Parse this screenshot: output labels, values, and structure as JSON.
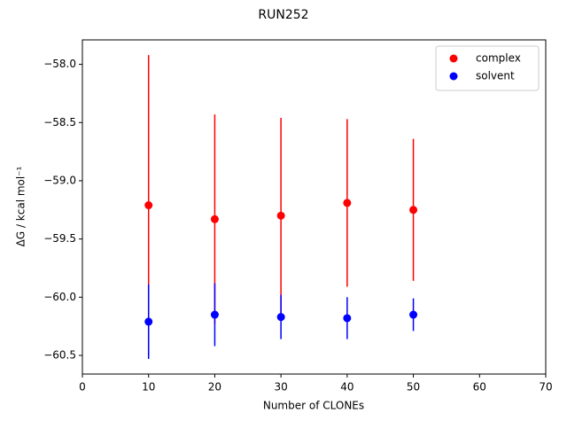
{
  "chart_data": {
    "type": "errorbar",
    "title": "RUN252",
    "x_label": "Number of CLONEs",
    "y_label": "ΔG / kcal mol⁻¹",
    "x": [
      10,
      20,
      30,
      40,
      50
    ],
    "series": [
      {
        "name": "complex",
        "color": "#ff0000",
        "values": [
          -59.21,
          -59.33,
          -59.3,
          -59.19,
          -59.25
        ],
        "errors": [
          1.29,
          0.9,
          0.84,
          0.72,
          0.61
        ]
      },
      {
        "name": "solvent",
        "color": "#0000ff",
        "values": [
          -60.21,
          -60.15,
          -60.17,
          -60.18,
          -60.15
        ],
        "errors": [
          0.32,
          0.27,
          0.19,
          0.18,
          0.14
        ]
      }
    ],
    "xlim": [
      0,
      70
    ],
    "xticks": [
      0,
      10,
      20,
      30,
      40,
      50,
      60,
      70
    ],
    "ylim": [
      -60.66,
      -57.79
    ],
    "yticks": [
      {
        "value": -60.5,
        "label": "−60.5"
      },
      {
        "value": -60.0,
        "label": "−60.0"
      },
      {
        "value": -59.5,
        "label": "−59.5"
      },
      {
        "value": -59.0,
        "label": "−59.0"
      },
      {
        "value": -58.5,
        "label": "−58.5"
      },
      {
        "value": -58.0,
        "label": "−58.0"
      }
    ],
    "legend": "upper right",
    "grid": false
  }
}
